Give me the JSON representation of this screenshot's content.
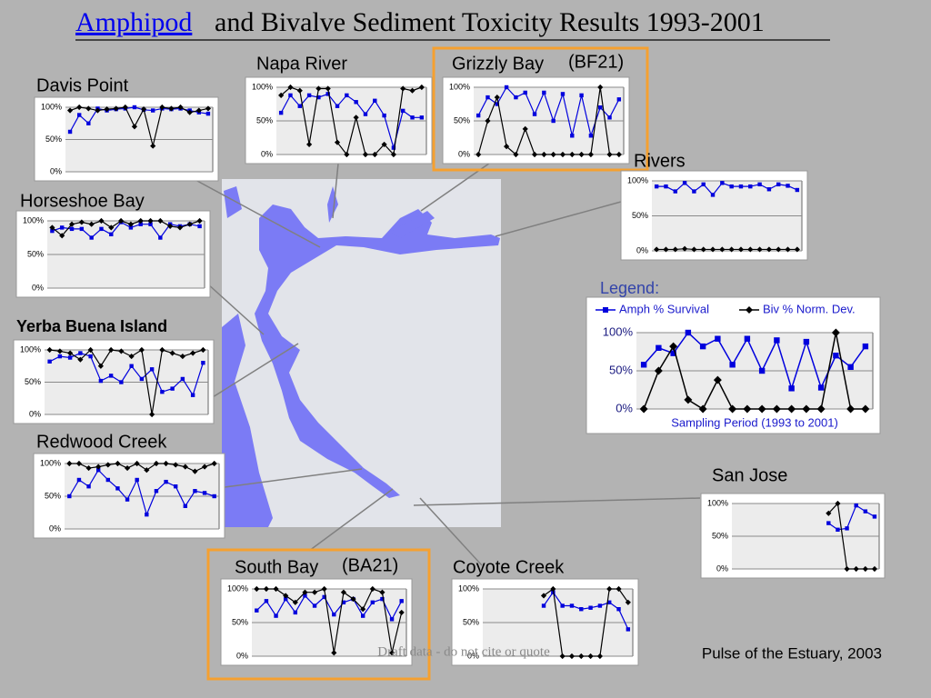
{
  "title_link": "Amphipod",
  "title": "and Bivalve Sediment Toxicity Results 1993-2001",
  "watermark": "Draft data - do not cite or quote",
  "credit": "Pulse of the Estuary, 2003",
  "chart_data": [
    {
      "type": "line",
      "title": "Davis Point",
      "categories": [
        null,
        null,
        null,
        null,
        null,
        null,
        null,
        null,
        null,
        null,
        null,
        null,
        null,
        null,
        null,
        null
      ],
      "series": [
        {
          "color": "#0000dd",
          "values": [
            62,
            88,
            75,
            98,
            95,
            97,
            98,
            100,
            96,
            95,
            98,
            97,
            98,
            95,
            92,
            90
          ]
        },
        {
          "color": "#000000",
          "values": [
            95,
            100,
            98,
            95,
            97,
            98,
            100,
            70,
            97,
            40,
            100,
            98,
            100,
            92,
            95,
            98
          ]
        }
      ],
      "ylim": [
        0,
        100
      ],
      "yticks": [
        {
          "value": 0,
          "label": "0%"
        },
        {
          "value": 50,
          "label": "50%"
        },
        {
          "value": 100,
          "label": "100%"
        }
      ],
      "grid": true
    },
    {
      "type": "line",
      "title": "Napa River",
      "categories": [
        null,
        null,
        null,
        null,
        null,
        null,
        null,
        null,
        null,
        null,
        null,
        null,
        null,
        null,
        null,
        null
      ],
      "series": [
        {
          "color": "#0000dd",
          "values": [
            62,
            88,
            72,
            88,
            85,
            90,
            72,
            88,
            78,
            60,
            80,
            58,
            10,
            65,
            55,
            55
          ]
        },
        {
          "color": "#000000",
          "values": [
            88,
            100,
            95,
            15,
            98,
            98,
            18,
            0,
            55,
            0,
            0,
            15,
            0,
            98,
            95,
            100
          ]
        }
      ],
      "ylim": [
        0,
        100
      ],
      "yticks": [
        {
          "value": 0,
          "label": "0%"
        },
        {
          "value": 50,
          "label": "50%"
        },
        {
          "value": 100,
          "label": "100%"
        }
      ],
      "grid": true
    },
    {
      "type": "line",
      "title": "Grizzly Bay",
      "subtitle": "(BF21)",
      "categories": [
        null,
        null,
        null,
        null,
        null,
        null,
        null,
        null,
        null,
        null,
        null,
        null,
        null,
        null,
        null,
        null
      ],
      "series": [
        {
          "color": "#0000dd",
          "values": [
            58,
            85,
            75,
            100,
            85,
            92,
            60,
            92,
            50,
            90,
            28,
            88,
            28,
            70,
            55,
            82
          ]
        },
        {
          "color": "#000000",
          "values": [
            0,
            50,
            85,
            12,
            0,
            38,
            0,
            0,
            0,
            0,
            0,
            0,
            0,
            100,
            0,
            0
          ]
        }
      ],
      "ylim": [
        0,
        100
      ],
      "yticks": [
        {
          "value": 0,
          "label": "0%"
        },
        {
          "value": 50,
          "label": "50%"
        },
        {
          "value": 100,
          "label": "100%"
        }
      ],
      "grid": true
    },
    {
      "type": "line",
      "title": "Rivers",
      "categories": [
        null,
        null,
        null,
        null,
        null,
        null,
        null,
        null,
        null,
        null,
        null,
        null,
        null,
        null,
        null,
        null
      ],
      "series": [
        {
          "color": "#0000dd",
          "values": [
            92,
            92,
            85,
            97,
            85,
            95,
            80,
            97,
            92,
            92,
            92,
            95,
            88,
            95,
            93,
            87
          ]
        },
        {
          "color": "#000000",
          "values": [
            2,
            2,
            2,
            3,
            2,
            2,
            2,
            2,
            2,
            2,
            2,
            2,
            2,
            2,
            2,
            2
          ]
        }
      ],
      "ylim": [
        0,
        100
      ],
      "yticks": [
        {
          "value": 0,
          "label": "0%"
        },
        {
          "value": 50,
          "label": "50%"
        },
        {
          "value": 100,
          "label": "100%"
        }
      ],
      "grid": true
    },
    {
      "type": "line",
      "title": "Horseshoe Bay",
      "categories": [
        null,
        null,
        null,
        null,
        null,
        null,
        null,
        null,
        null,
        null,
        null,
        null,
        null,
        null,
        null,
        null
      ],
      "series": [
        {
          "color": "#0000dd",
          "values": [
            85,
            90,
            88,
            88,
            75,
            88,
            80,
            98,
            90,
            95,
            95,
            75,
            95,
            92,
            95,
            92
          ]
        },
        {
          "color": "#000000",
          "values": [
            90,
            78,
            95,
            98,
            95,
            100,
            90,
            100,
            95,
            100,
            100,
            100,
            92,
            90,
            95,
            100
          ]
        }
      ],
      "ylim": [
        0,
        100
      ],
      "yticks": [
        {
          "value": 0,
          "label": "0%"
        },
        {
          "value": 50,
          "label": "50%"
        },
        {
          "value": 100,
          "label": "100%"
        }
      ],
      "grid": true
    },
    {
      "type": "line",
      "title": "Yerba Buena Island",
      "categories": [
        null,
        null,
        null,
        null,
        null,
        null,
        null,
        null,
        null,
        null,
        null,
        null,
        null,
        null,
        null,
        null
      ],
      "series": [
        {
          "color": "#0000dd",
          "values": [
            82,
            90,
            88,
            95,
            90,
            52,
            60,
            50,
            75,
            55,
            70,
            35,
            40,
            55,
            30,
            80
          ]
        },
        {
          "color": "#000000",
          "values": [
            100,
            98,
            95,
            85,
            100,
            75,
            100,
            98,
            90,
            100,
            0,
            100,
            95,
            90,
            95,
            100
          ]
        }
      ],
      "ylim": [
        0,
        100
      ],
      "yticks": [
        {
          "value": 0,
          "label": "0%"
        },
        {
          "value": 50,
          "label": "50%"
        },
        {
          "value": 100,
          "label": "100%"
        }
      ],
      "grid": true
    },
    {
      "type": "line",
      "title": "Redwood Creek",
      "categories": [
        null,
        null,
        null,
        null,
        null,
        null,
        null,
        null,
        null,
        null,
        null,
        null,
        null,
        null,
        null,
        null
      ],
      "series": [
        {
          "color": "#0000dd",
          "values": [
            50,
            75,
            65,
            90,
            75,
            62,
            45,
            75,
            22,
            58,
            72,
            65,
            35,
            58,
            55,
            50
          ]
        },
        {
          "color": "#000000",
          "values": [
            100,
            100,
            93,
            95,
            98,
            100,
            93,
            100,
            90,
            100,
            100,
            98,
            95,
            88,
            95,
            100
          ]
        }
      ],
      "ylim": [
        0,
        100
      ],
      "yticks": [
        {
          "value": 0,
          "label": "0%"
        },
        {
          "value": 50,
          "label": "50%"
        },
        {
          "value": 100,
          "label": "100%"
        }
      ],
      "grid": true
    },
    {
      "type": "line",
      "title": "San Jose",
      "categories": [
        null,
        null,
        null,
        null,
        null,
        null,
        null,
        null,
        null,
        null,
        null,
        null,
        null,
        null,
        null,
        null
      ],
      "series": [
        {
          "color": "#0000dd",
          "values": [
            null,
            null,
            null,
            null,
            null,
            null,
            null,
            null,
            null,
            null,
            70,
            60,
            62,
            97,
            88,
            80
          ]
        },
        {
          "color": "#000000",
          "values": [
            null,
            null,
            null,
            null,
            null,
            null,
            null,
            null,
            null,
            null,
            85,
            100,
            0,
            0,
            0,
            0
          ]
        }
      ],
      "ylim": [
        0,
        100
      ],
      "yticks": [
        {
          "value": 0,
          "label": "0%"
        },
        {
          "value": 50,
          "label": "50%"
        },
        {
          "value": 100,
          "label": "100%"
        }
      ],
      "grid": true
    },
    {
      "type": "line",
      "title": "South Bay",
      "subtitle": "(BA21)",
      "categories": [
        null,
        null,
        null,
        null,
        null,
        null,
        null,
        null,
        null,
        null,
        null,
        null,
        null,
        null,
        null,
        null
      ],
      "series": [
        {
          "color": "#0000dd",
          "values": [
            68,
            82,
            60,
            85,
            65,
            90,
            75,
            88,
            62,
            80,
            85,
            60,
            80,
            85,
            55,
            82
          ]
        },
        {
          "color": "#000000",
          "values": [
            100,
            100,
            100,
            90,
            80,
            95,
            95,
            100,
            5,
            95,
            85,
            70,
            100,
            95,
            5,
            65
          ]
        }
      ],
      "ylim": [
        0,
        100
      ],
      "yticks": [
        {
          "value": 0,
          "label": "0%"
        },
        {
          "value": 50,
          "label": "50%"
        },
        {
          "value": 100,
          "label": "100%"
        }
      ],
      "grid": true
    },
    {
      "type": "line",
      "title": "Coyote Creek",
      "categories": [
        null,
        null,
        null,
        null,
        null,
        null,
        null,
        null,
        null,
        null,
        null,
        null,
        null,
        null,
        null,
        null
      ],
      "series": [
        {
          "color": "#0000dd",
          "values": [
            null,
            null,
            null,
            null,
            null,
            null,
            75,
            95,
            75,
            75,
            70,
            72,
            75,
            80,
            70,
            40
          ]
        },
        {
          "color": "#000000",
          "values": [
            null,
            null,
            null,
            null,
            null,
            null,
            90,
            100,
            0,
            0,
            0,
            0,
            0,
            100,
            100,
            80
          ]
        }
      ],
      "ylim": [
        0,
        100
      ],
      "yticks": [
        {
          "value": 0,
          "label": "0%"
        },
        {
          "value": 50,
          "label": "50%"
        },
        {
          "value": 100,
          "label": "100%"
        }
      ],
      "grid": true
    },
    {
      "type": "line",
      "title": "Legend:",
      "x_label": "Sampling Period (1993 to 2001)",
      "legend": "top",
      "categories": [
        null,
        null,
        null,
        null,
        null,
        null,
        null,
        null,
        null,
        null,
        null,
        null,
        null,
        null,
        null,
        null
      ],
      "series": [
        {
          "name": "Amph % Survival",
          "color": "#0000dd",
          "values": [
            58,
            80,
            73,
            100,
            82,
            92,
            58,
            92,
            50,
            90,
            27,
            88,
            28,
            70,
            55,
            82
          ]
        },
        {
          "name": "Biv % Norm. Dev.",
          "color": "#000000",
          "values": [
            0,
            50,
            82,
            12,
            0,
            38,
            0,
            0,
            0,
            0,
            0,
            0,
            0,
            100,
            0,
            0
          ]
        }
      ],
      "ylim": [
        0,
        100
      ],
      "yticks": [
        {
          "value": 0,
          "label": "0%"
        },
        {
          "value": 50,
          "label": "50%"
        },
        {
          "value": 100,
          "label": "100%"
        }
      ],
      "grid": true
    }
  ]
}
